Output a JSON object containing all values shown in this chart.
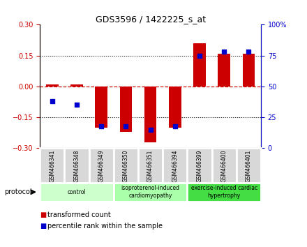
{
  "title": "GDS3596 / 1422225_s_at",
  "samples": [
    "GSM466341",
    "GSM466348",
    "GSM466349",
    "GSM466350",
    "GSM466351",
    "GSM466394",
    "GSM466399",
    "GSM466400",
    "GSM466401"
  ],
  "transformed_count": [
    0.01,
    0.01,
    -0.2,
    -0.22,
    -0.27,
    -0.2,
    0.21,
    0.16,
    0.16
  ],
  "percentile_rank": [
    38,
    35,
    18,
    18,
    15,
    18,
    75,
    78,
    78
  ],
  "ylim_left": [
    -0.3,
    0.3
  ],
  "ylim_right": [
    0,
    100
  ],
  "yticks_left": [
    -0.3,
    -0.15,
    0,
    0.15,
    0.3
  ],
  "yticks_right": [
    0,
    25,
    50,
    75,
    100
  ],
  "ytick_labels_right": [
    "0",
    "25",
    "50",
    "75",
    "100%"
  ],
  "bar_color": "#cc0000",
  "dot_color": "#0000cc",
  "zero_line_color": "#cc0000",
  "groups": [
    {
      "label": "control",
      "start": 0,
      "end": 3,
      "color": "#ccffcc"
    },
    {
      "label": "isoproterenol-induced\ncardiomyopathy",
      "start": 3,
      "end": 6,
      "color": "#aaffaa"
    },
    {
      "label": "exercise-induced cardiac\nhypertrophy",
      "start": 6,
      "end": 9,
      "color": "#44dd44"
    }
  ],
  "legend_bar_label": "transformed count",
  "legend_dot_label": "percentile rank within the sample",
  "protocol_label": "protocol",
  "background_color": "#ffffff",
  "plot_bg_color": "#ffffff",
  "tick_label_color_left": "#cc0000",
  "tick_label_color_right": "#0000cc",
  "bar_width": 0.5,
  "dot_size": 25
}
